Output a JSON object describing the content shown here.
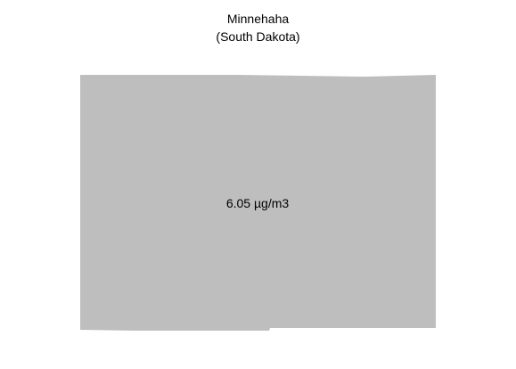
{
  "map": {
    "region_name": "Minnehaha",
    "state_label": "(South Dakota)",
    "value_label": "6.05 µg/m3",
    "fill_color": "#bebebe",
    "background_color": "#ffffff"
  }
}
